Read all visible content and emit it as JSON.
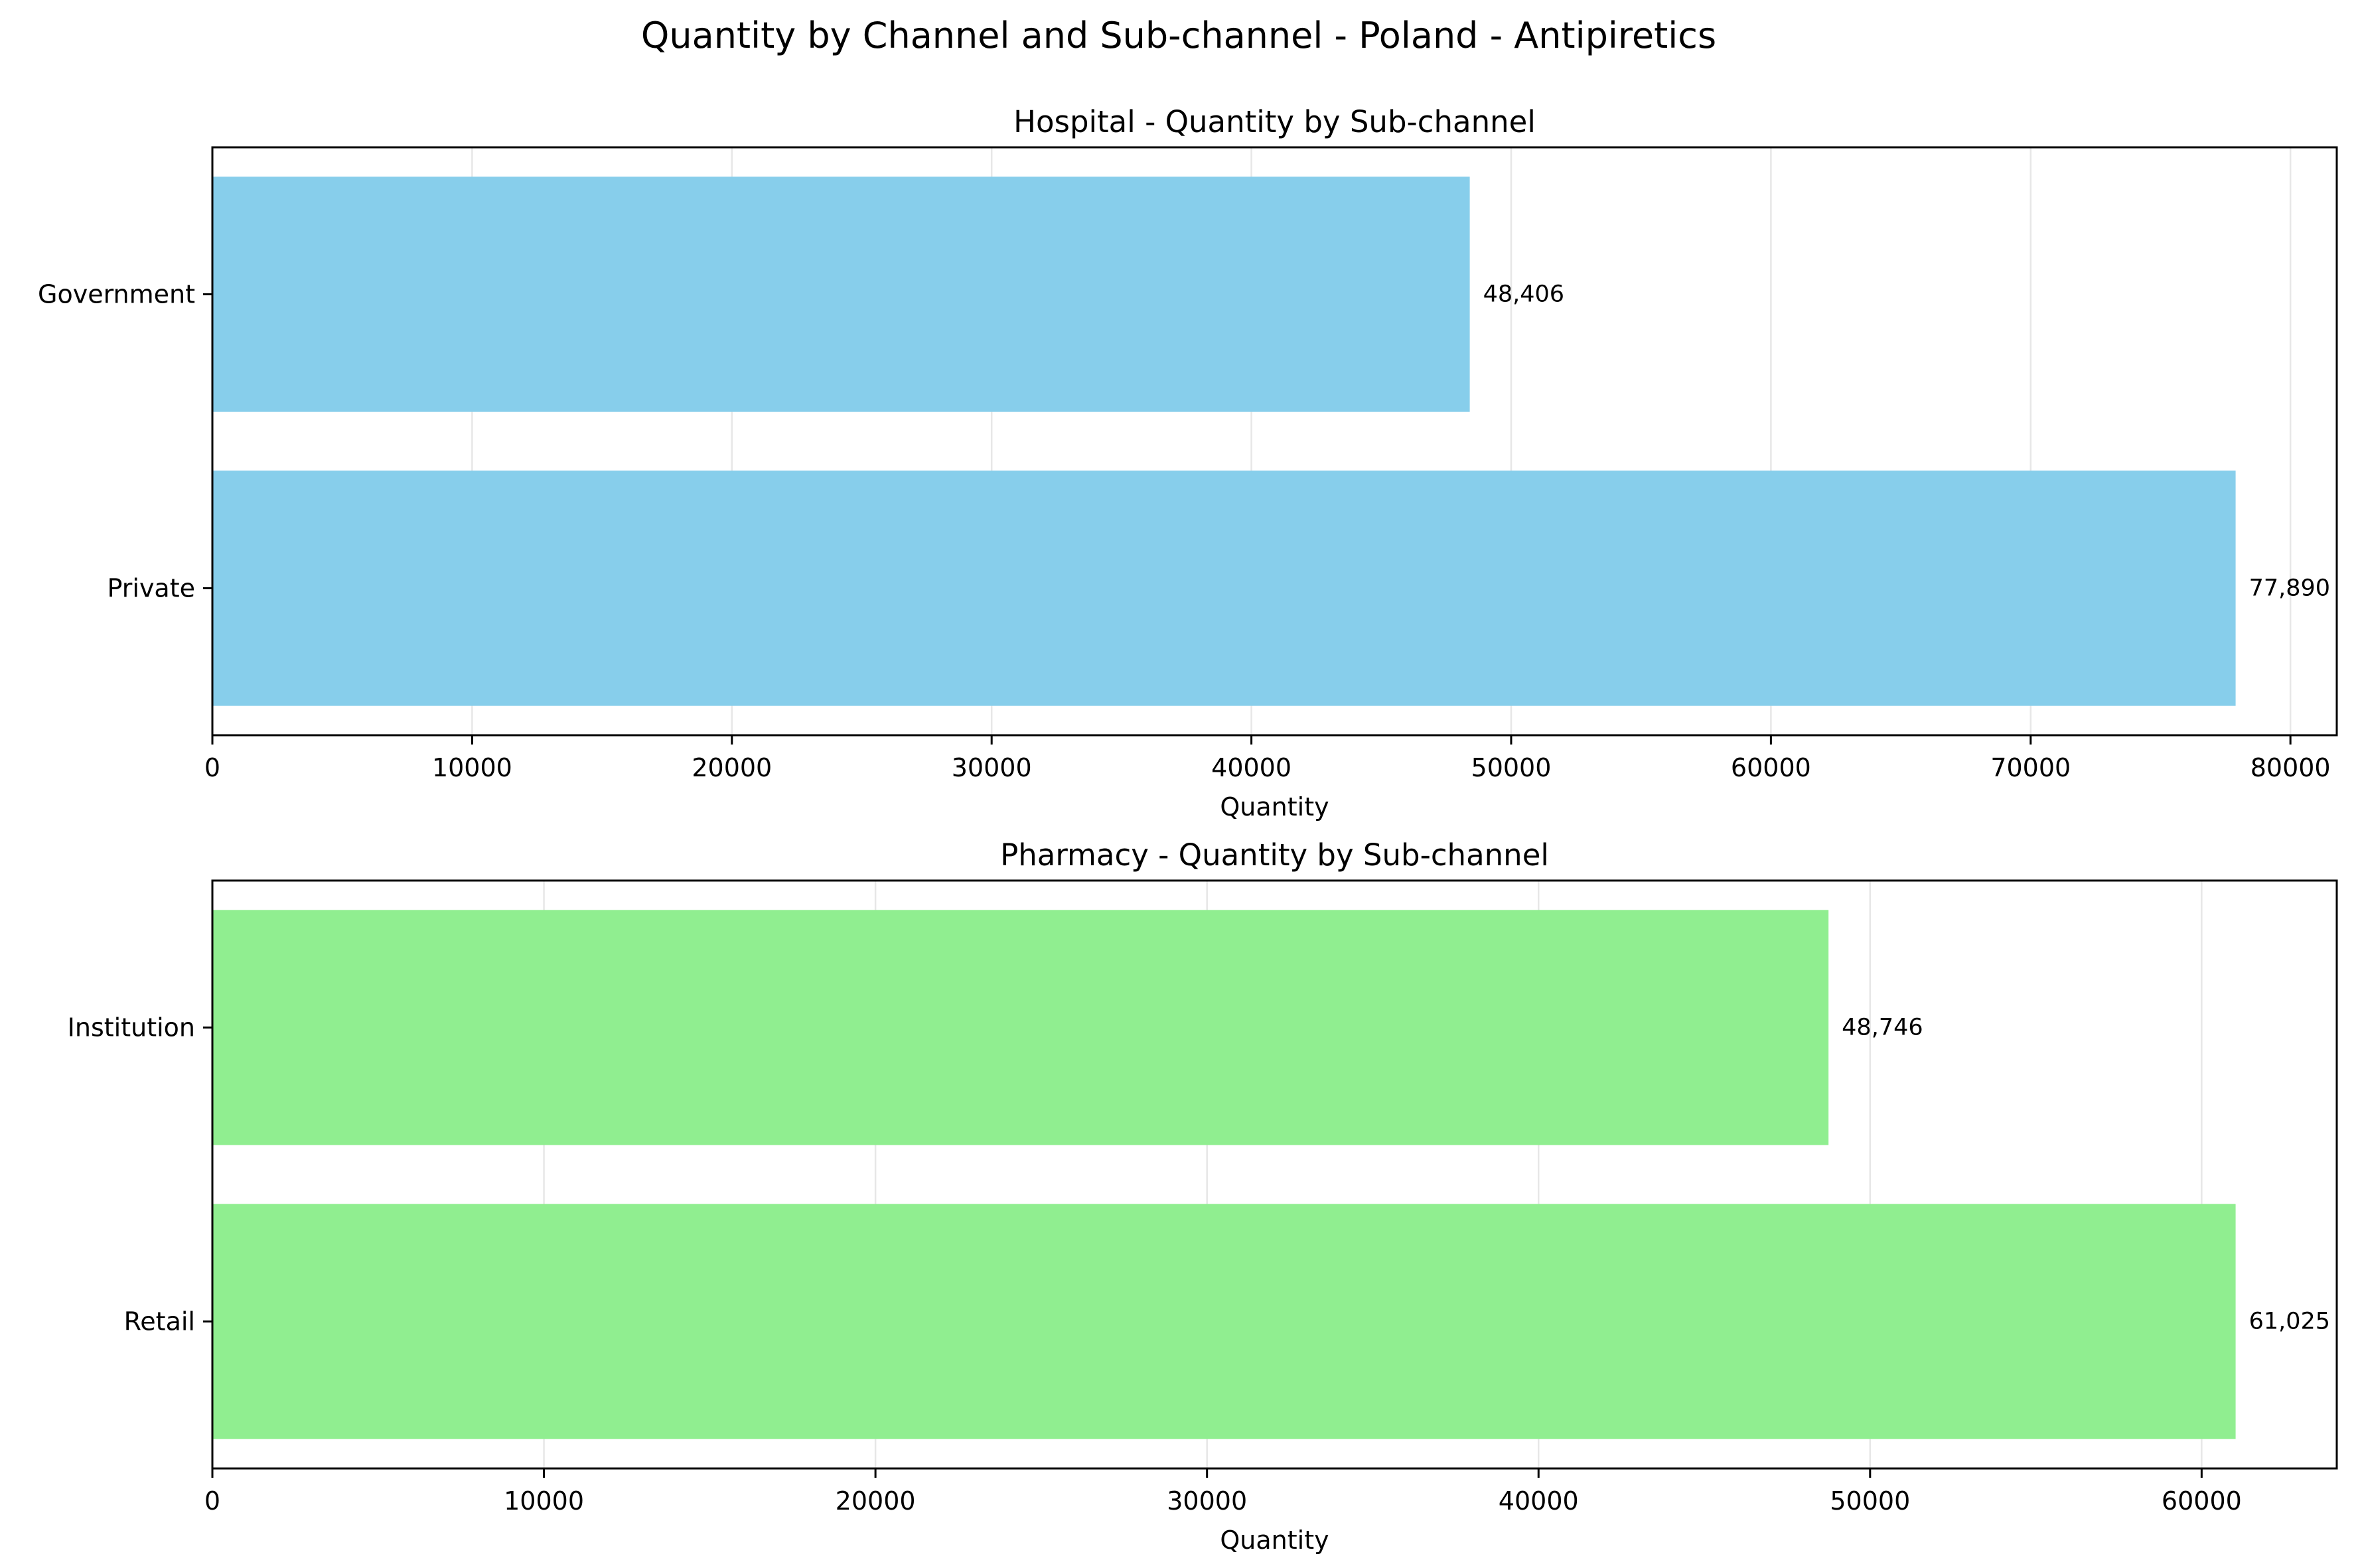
{
  "title": "Quantity by Channel and Sub-channel - Poland - Antipiretics",
  "chart_data": [
    {
      "type": "bar",
      "orientation": "horizontal",
      "title": "Hospital - Quantity by Sub-channel",
      "categories": [
        "Government",
        "Private"
      ],
      "values": [
        48406,
        77890
      ],
      "value_labels": [
        "48,406",
        "77,890"
      ],
      "xlabel": "Quantity",
      "ylabel": "",
      "xlim": [
        0,
        81784
      ],
      "xticks": [
        0,
        10000,
        20000,
        30000,
        40000,
        50000,
        60000,
        70000,
        80000
      ],
      "grid": "x",
      "bar_color": "#87CEEB"
    },
    {
      "type": "bar",
      "orientation": "horizontal",
      "title": "Pharmacy - Quantity by Sub-channel",
      "categories": [
        "Institution",
        "Retail"
      ],
      "values": [
        48746,
        61025
      ],
      "value_labels": [
        "48,746",
        "61,025"
      ],
      "xlabel": "Quantity",
      "ylabel": "",
      "xlim": [
        0,
        64076
      ],
      "xticks": [
        0,
        10000,
        20000,
        30000,
        40000,
        50000,
        60000
      ],
      "grid": "x",
      "bar_color": "#90EE90"
    }
  ]
}
